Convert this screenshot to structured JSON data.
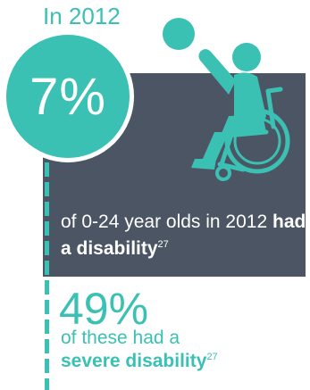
{
  "heading": {
    "year_label": "In 2012"
  },
  "stat_primary": {
    "percent": "7%",
    "text_prefix": "of 0-24 year olds in 2012 ",
    "text_bold": "had a disability",
    "footnote": "27"
  },
  "stat_secondary": {
    "percent": "49%",
    "text_prefix": "of these had a",
    "text_bold": "severe disability",
    "footnote": "27"
  },
  "icons": {
    "graphic": "child-in-wheelchair-icon"
  },
  "colors": {
    "accent": "#3bc0b4",
    "panel": "#4b5563",
    "text_light": "#ffffff"
  }
}
